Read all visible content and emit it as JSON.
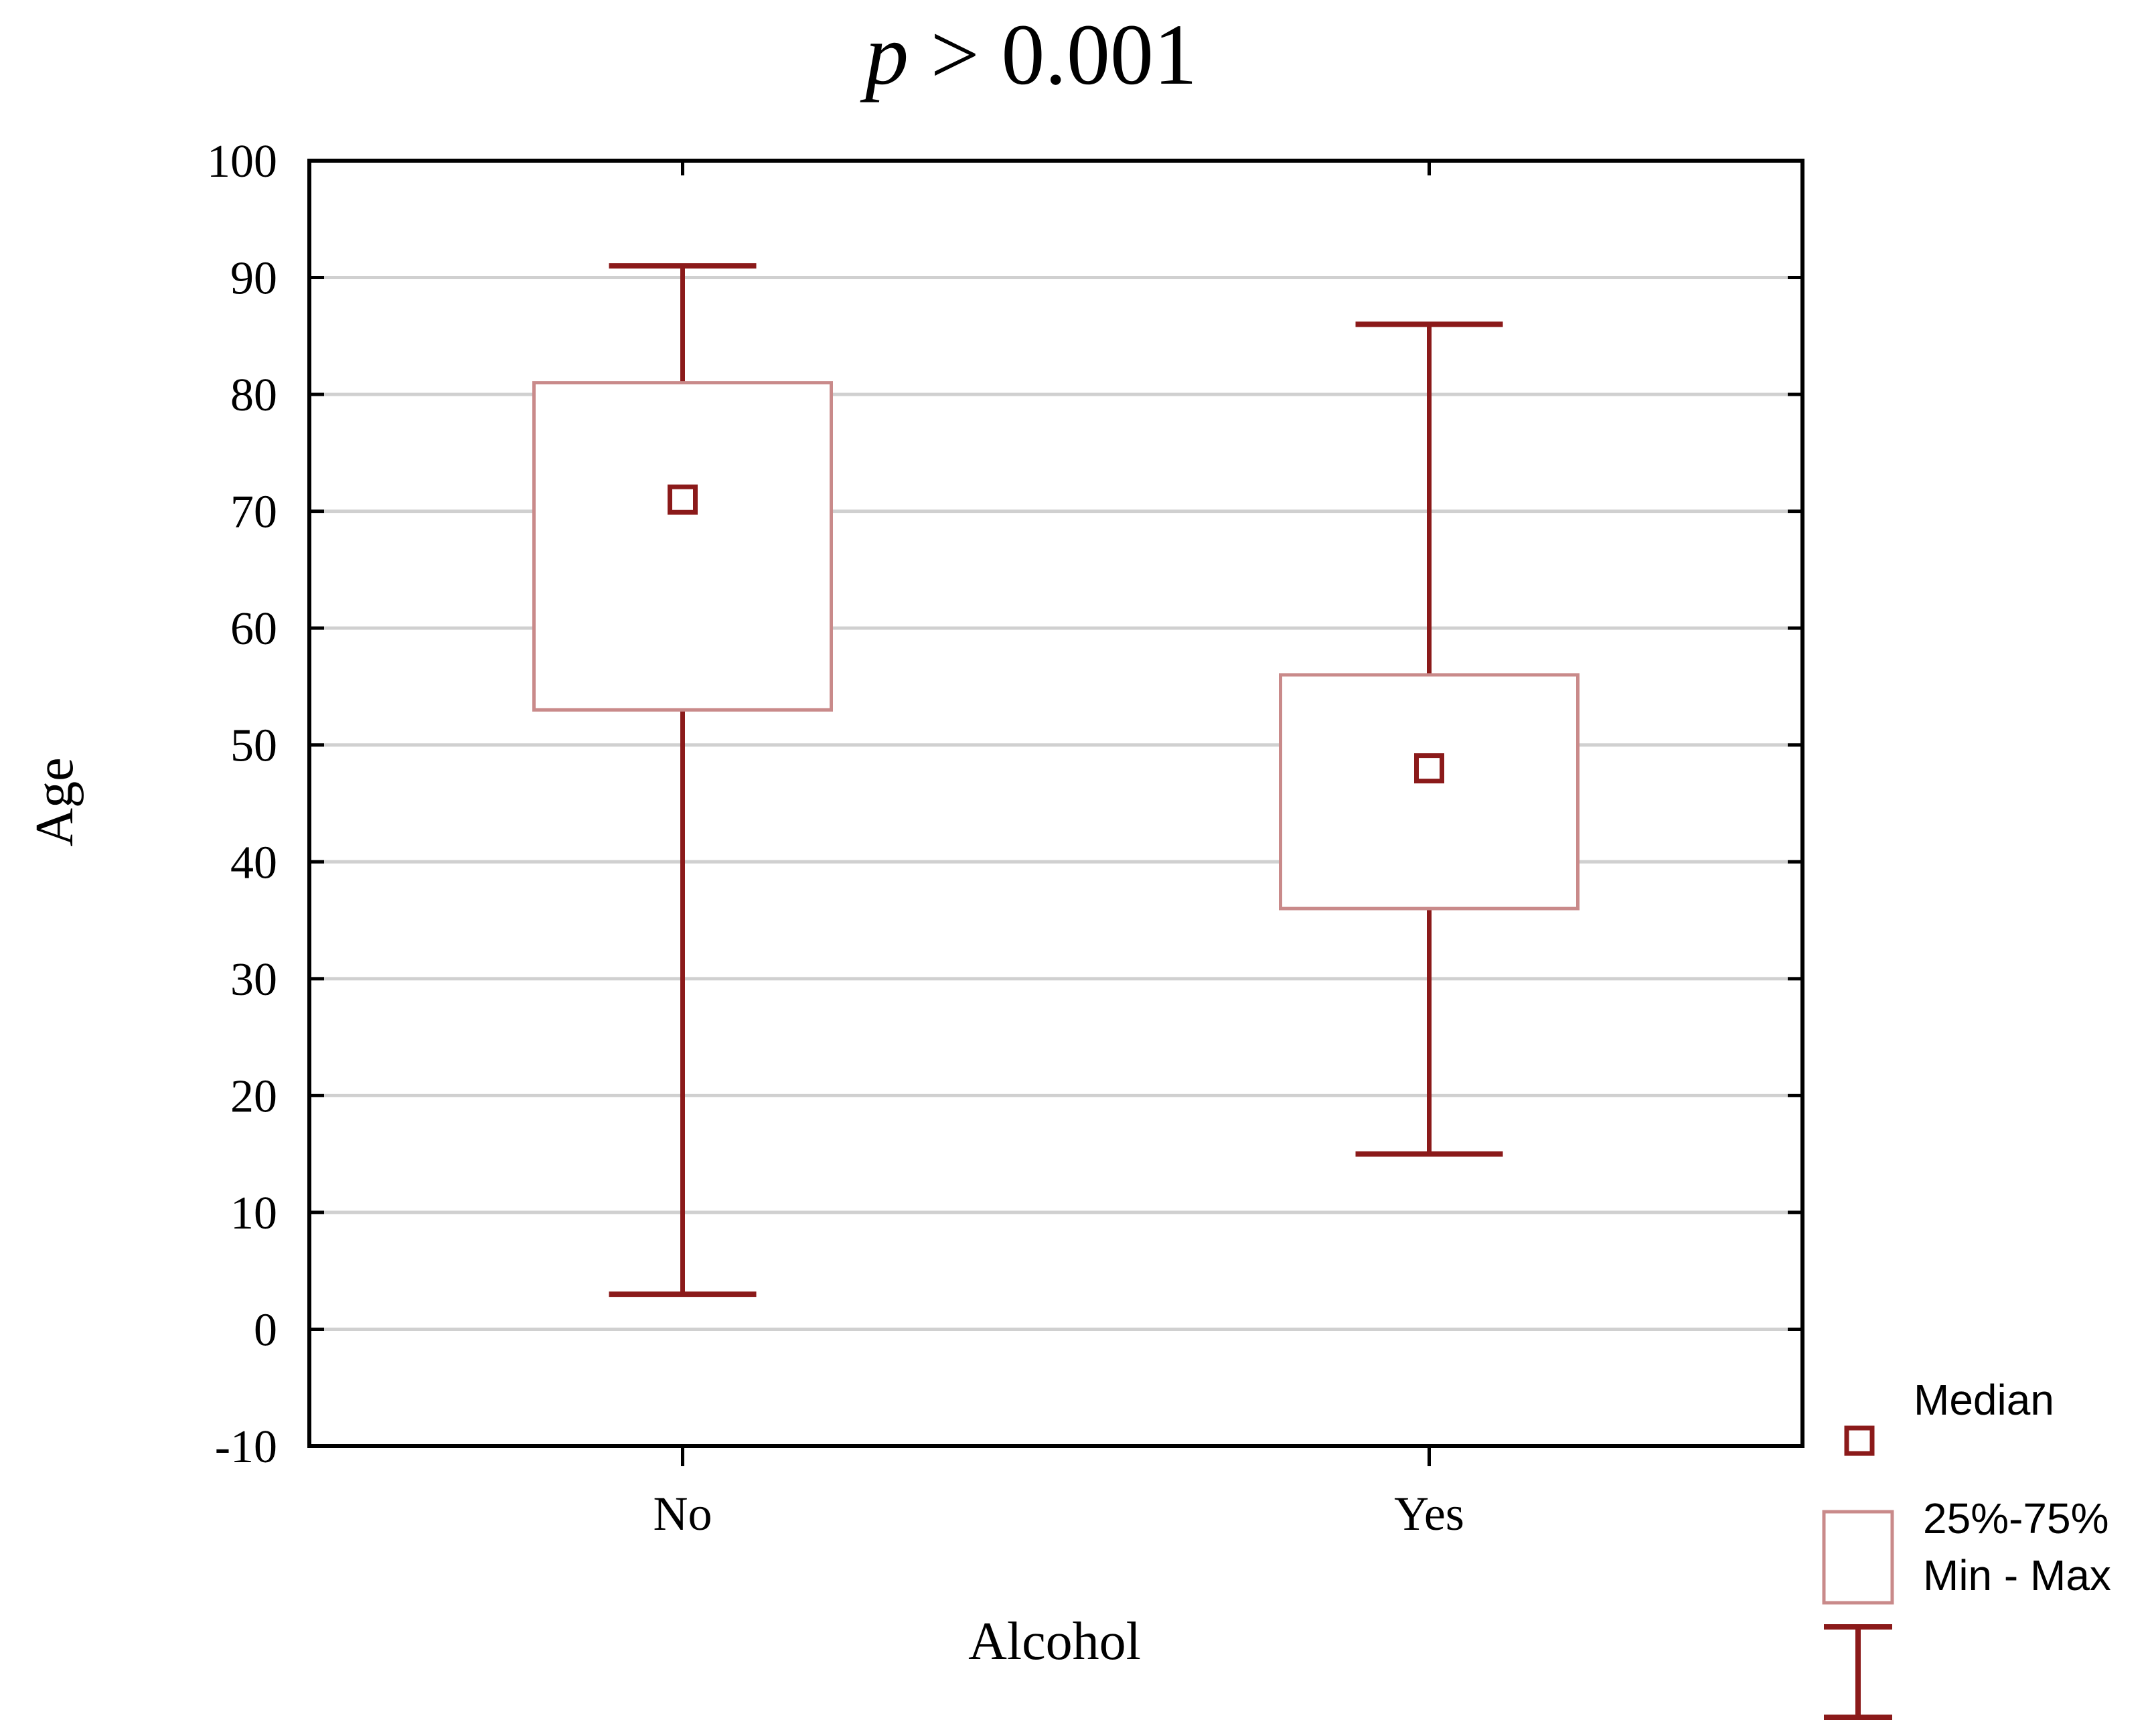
{
  "chart_data": {
    "type": "box",
    "title_p": "p",
    "title_rest": " > 0.001",
    "xlabel": "Alcohol",
    "ylabel": "Age",
    "ylim": [
      -10,
      100
    ],
    "yticks": [
      "100",
      "90",
      "80",
      "70",
      "60",
      "50",
      "40",
      "30",
      "20",
      "10",
      "0",
      "-10"
    ],
    "ytick_values": [
      100,
      90,
      80,
      70,
      60,
      50,
      40,
      30,
      20,
      10,
      0,
      -10
    ],
    "grid": "horizontal",
    "categories": [
      "No",
      "Yes"
    ],
    "series": [
      {
        "category": "No",
        "min": 3,
        "q1": 53,
        "median": 71,
        "q3": 81,
        "max": 91
      },
      {
        "category": "Yes",
        "min": 15,
        "q1": 36,
        "median": 48,
        "q3": 56,
        "max": 86
      }
    ],
    "legend": {
      "position": "bottom-right",
      "median_label": "Median",
      "box_label": "25%-75%",
      "whisker_label": "Min - Max"
    },
    "colors": {
      "mark": "#8b1a1a",
      "box": "#c98a8a",
      "grid": "#d0d0d0",
      "axis": "#000000"
    }
  }
}
